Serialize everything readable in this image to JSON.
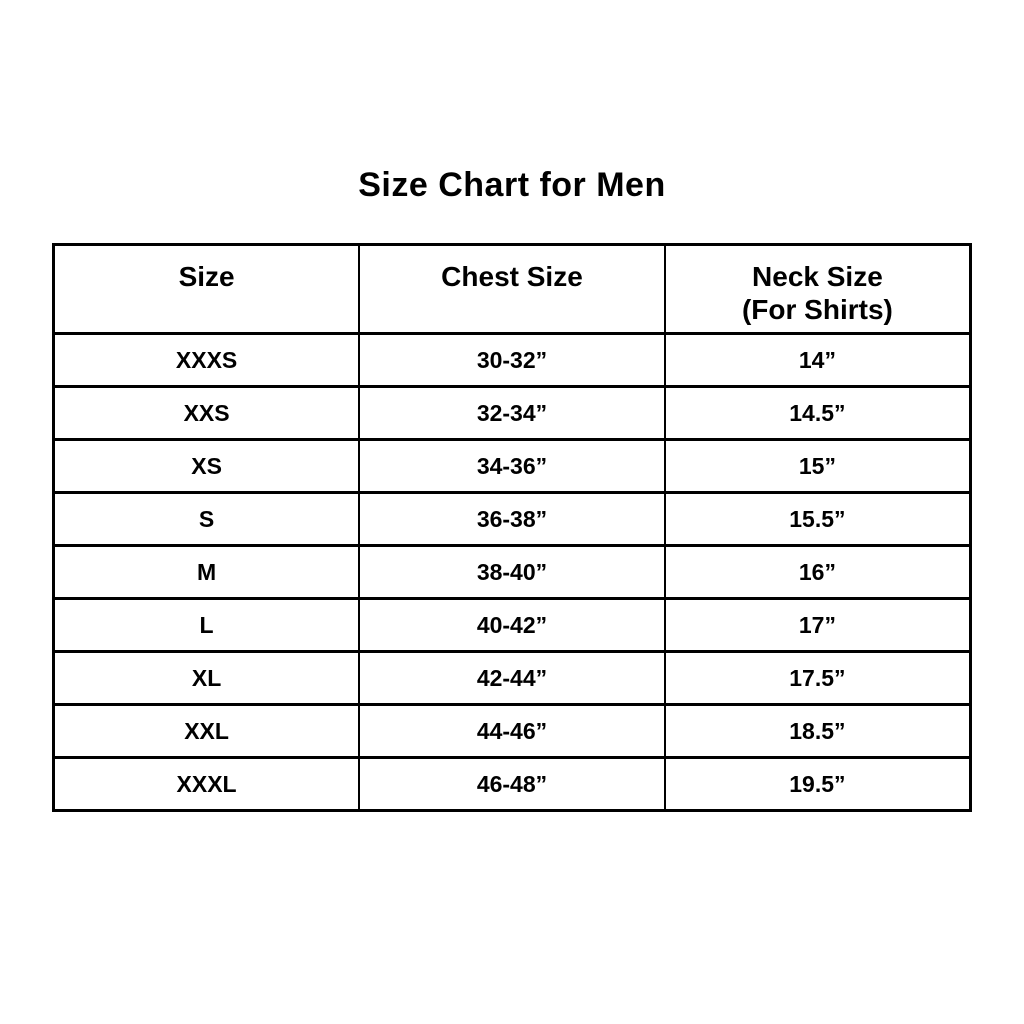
{
  "page": {
    "background_color": "#ffffff",
    "border_color": "#000000",
    "text_color": "#000000"
  },
  "header": {
    "col1": "Size",
    "col2": "Chest Size",
    "col3_line1": "Neck Size",
    "col3_line2": "(For Shirts)"
  },
  "chart_data": {
    "type": "table",
    "title": "Size Chart for Men",
    "columns": [
      "Size",
      "Chest Size",
      "Neck Size (For Shirts)"
    ],
    "rows": [
      [
        "XXXS",
        "30-32”",
        "14”"
      ],
      [
        "XXS",
        "32-34”",
        "14.5”"
      ],
      [
        "XS",
        "34-36”",
        "15”"
      ],
      [
        "S",
        "36-38”",
        "15.5”"
      ],
      [
        "M",
        "38-40”",
        "16”"
      ],
      [
        "L",
        "40-42”",
        "17”"
      ],
      [
        "XL",
        "42-44”",
        "17.5”"
      ],
      [
        "XXL",
        "44-46”",
        "18.5”"
      ],
      [
        "XXXL",
        "46-48”",
        "19.5”"
      ]
    ]
  }
}
